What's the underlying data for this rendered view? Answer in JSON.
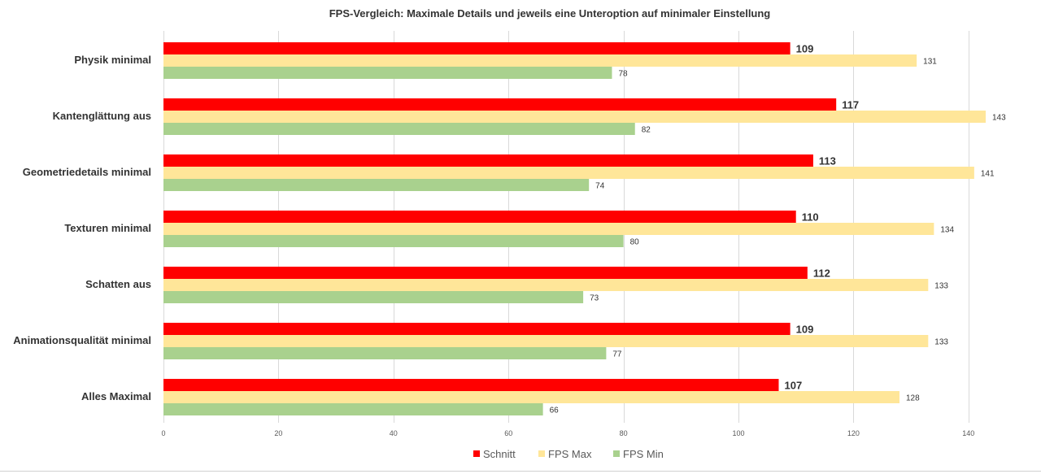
{
  "chart_data": {
    "type": "bar",
    "orientation": "horizontal",
    "title": "FPS-Vergleich: Maximale Details und jeweils eine Unteroption auf minimaler Einstellung",
    "categories": [
      "Physik minimal",
      "Kantenglättung aus",
      "Geometriedetails minimal",
      "Texturen minimal",
      "Schatten aus",
      "Animationsqualität minimal",
      "Alles Maximal"
    ],
    "series": [
      {
        "name": "Schnitt",
        "color": "#ff0000",
        "values": [
          109,
          117,
          113,
          110,
          112,
          109,
          107
        ]
      },
      {
        "name": "FPS Max",
        "color": "#ffe699",
        "values": [
          131,
          143,
          141,
          134,
          133,
          133,
          128
        ]
      },
      {
        "name": "FPS Min",
        "color": "#a9d18e",
        "values": [
          78,
          82,
          74,
          80,
          73,
          77,
          66
        ]
      }
    ],
    "xlim": [
      0,
      150
    ],
    "xticks": [
      0,
      20,
      40,
      60,
      80,
      100,
      120,
      140
    ],
    "xlabel": "",
    "ylabel": "",
    "grid": true,
    "legend_position": "bottom"
  }
}
